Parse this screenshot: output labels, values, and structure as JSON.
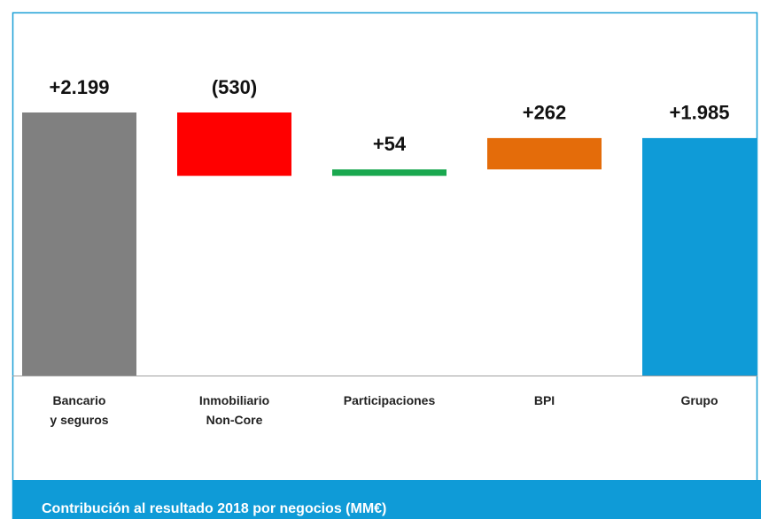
{
  "chart_data": {
    "type": "waterfall",
    "title": "Contribución al resultado 2018 por negocios (MM€)",
    "categories": [
      "Bancario\ny seguros",
      "Inmobiliario\nNon-Core",
      "Participaciones",
      "BPI",
      "Grupo"
    ],
    "values": [
      2199,
      -530,
      54,
      262,
      1985
    ],
    "value_labels": [
      "+2.199",
      "(530)",
      "+54",
      "+262",
      "+1.985"
    ],
    "colors": [
      "#808080",
      "#ff0000",
      "#1aa84f",
      "#e46c0a",
      "#0f9bd7"
    ],
    "last_is_total": true
  }
}
